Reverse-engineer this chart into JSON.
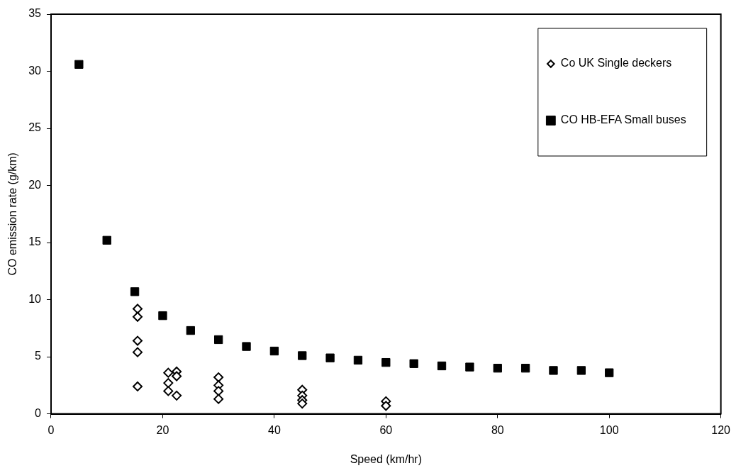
{
  "chart_data": {
    "type": "scatter",
    "xlabel": "Speed (km/hr)",
    "ylabel": "CO emission rate (g/km)",
    "xlim": [
      0,
      120
    ],
    "xticks": [
      0,
      20,
      40,
      60,
      80,
      100,
      120
    ],
    "ylim": [
      0,
      35
    ],
    "yticks": [
      0,
      5,
      10,
      15,
      20,
      25,
      30,
      35
    ],
    "grid": false,
    "legend": "top right",
    "series": [
      {
        "name": "Co UK Single deckers",
        "color": "#000000",
        "marker": "diamond",
        "x": [
          15.5,
          15.5,
          15.5,
          15.5,
          15.5,
          21,
          21,
          21,
          22.5,
          22.5,
          22.5,
          30,
          30,
          30,
          30,
          45,
          45,
          45,
          45,
          60,
          60
        ],
        "values": [
          9.2,
          8.5,
          6.4,
          5.4,
          2.4,
          3.6,
          2.7,
          2.0,
          3.7,
          3.3,
          1.6,
          3.2,
          2.5,
          2.0,
          1.3,
          2.1,
          1.6,
          1.2,
          0.9,
          1.1,
          0.7
        ]
      },
      {
        "name": "CO HB-EFA Small buses",
        "color": "#000000",
        "marker": "square",
        "x": [
          5,
          10,
          15,
          20,
          25,
          30,
          35,
          40,
          45,
          50,
          55,
          60,
          65,
          70,
          75,
          80,
          85,
          90,
          95,
          100
        ],
        "values": [
          30.6,
          15.2,
          10.7,
          8.6,
          7.3,
          6.5,
          5.9,
          5.5,
          5.1,
          4.9,
          4.7,
          4.5,
          4.4,
          4.2,
          4.1,
          4.0,
          4.0,
          3.8,
          3.8,
          3.6
        ]
      }
    ]
  }
}
